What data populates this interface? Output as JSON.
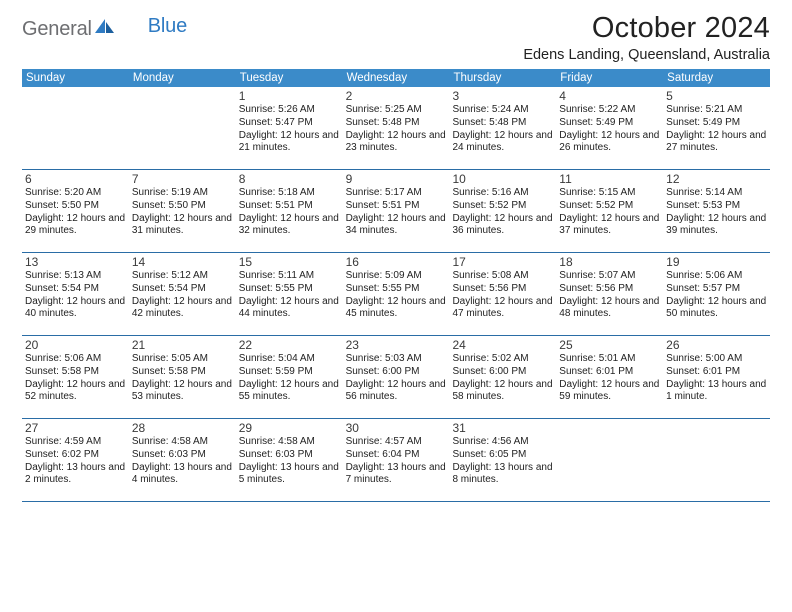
{
  "brand": {
    "part1": "General",
    "part2": "Blue"
  },
  "title": "October 2024",
  "location": "Edens Landing, Queensland, Australia",
  "styling": {
    "header_bg": "#3b8bc9",
    "header_text": "#ffffff",
    "rule_color": "#2a6da6",
    "logo_gray": "#6d6e71",
    "logo_blue": "#2f7bc3",
    "page_bg": "#ffffff",
    "title_fontsize": 29,
    "location_fontsize": 14.5,
    "dayhead_fontsize": 11.5,
    "daynum_fontsize": 12,
    "info_fontsize": 10
  },
  "day_headers": [
    "Sunday",
    "Monday",
    "Tuesday",
    "Wednesday",
    "Thursday",
    "Friday",
    "Saturday"
  ],
  "weeks": [
    [
      {
        "n": "",
        "sr": "",
        "ss": "",
        "dl": ""
      },
      {
        "n": "",
        "sr": "",
        "ss": "",
        "dl": ""
      },
      {
        "n": "1",
        "sr": "Sunrise: 5:26 AM",
        "ss": "Sunset: 5:47 PM",
        "dl": "Daylight: 12 hours and 21 minutes."
      },
      {
        "n": "2",
        "sr": "Sunrise: 5:25 AM",
        "ss": "Sunset: 5:48 PM",
        "dl": "Daylight: 12 hours and 23 minutes."
      },
      {
        "n": "3",
        "sr": "Sunrise: 5:24 AM",
        "ss": "Sunset: 5:48 PM",
        "dl": "Daylight: 12 hours and 24 minutes."
      },
      {
        "n": "4",
        "sr": "Sunrise: 5:22 AM",
        "ss": "Sunset: 5:49 PM",
        "dl": "Daylight: 12 hours and 26 minutes."
      },
      {
        "n": "5",
        "sr": "Sunrise: 5:21 AM",
        "ss": "Sunset: 5:49 PM",
        "dl": "Daylight: 12 hours and 27 minutes."
      }
    ],
    [
      {
        "n": "6",
        "sr": "Sunrise: 5:20 AM",
        "ss": "Sunset: 5:50 PM",
        "dl": "Daylight: 12 hours and 29 minutes."
      },
      {
        "n": "7",
        "sr": "Sunrise: 5:19 AM",
        "ss": "Sunset: 5:50 PM",
        "dl": "Daylight: 12 hours and 31 minutes."
      },
      {
        "n": "8",
        "sr": "Sunrise: 5:18 AM",
        "ss": "Sunset: 5:51 PM",
        "dl": "Daylight: 12 hours and 32 minutes."
      },
      {
        "n": "9",
        "sr": "Sunrise: 5:17 AM",
        "ss": "Sunset: 5:51 PM",
        "dl": "Daylight: 12 hours and 34 minutes."
      },
      {
        "n": "10",
        "sr": "Sunrise: 5:16 AM",
        "ss": "Sunset: 5:52 PM",
        "dl": "Daylight: 12 hours and 36 minutes."
      },
      {
        "n": "11",
        "sr": "Sunrise: 5:15 AM",
        "ss": "Sunset: 5:52 PM",
        "dl": "Daylight: 12 hours and 37 minutes."
      },
      {
        "n": "12",
        "sr": "Sunrise: 5:14 AM",
        "ss": "Sunset: 5:53 PM",
        "dl": "Daylight: 12 hours and 39 minutes."
      }
    ],
    [
      {
        "n": "13",
        "sr": "Sunrise: 5:13 AM",
        "ss": "Sunset: 5:54 PM",
        "dl": "Daylight: 12 hours and 40 minutes."
      },
      {
        "n": "14",
        "sr": "Sunrise: 5:12 AM",
        "ss": "Sunset: 5:54 PM",
        "dl": "Daylight: 12 hours and 42 minutes."
      },
      {
        "n": "15",
        "sr": "Sunrise: 5:11 AM",
        "ss": "Sunset: 5:55 PM",
        "dl": "Daylight: 12 hours and 44 minutes."
      },
      {
        "n": "16",
        "sr": "Sunrise: 5:09 AM",
        "ss": "Sunset: 5:55 PM",
        "dl": "Daylight: 12 hours and 45 minutes."
      },
      {
        "n": "17",
        "sr": "Sunrise: 5:08 AM",
        "ss": "Sunset: 5:56 PM",
        "dl": "Daylight: 12 hours and 47 minutes."
      },
      {
        "n": "18",
        "sr": "Sunrise: 5:07 AM",
        "ss": "Sunset: 5:56 PM",
        "dl": "Daylight: 12 hours and 48 minutes."
      },
      {
        "n": "19",
        "sr": "Sunrise: 5:06 AM",
        "ss": "Sunset: 5:57 PM",
        "dl": "Daylight: 12 hours and 50 minutes."
      }
    ],
    [
      {
        "n": "20",
        "sr": "Sunrise: 5:06 AM",
        "ss": "Sunset: 5:58 PM",
        "dl": "Daylight: 12 hours and 52 minutes."
      },
      {
        "n": "21",
        "sr": "Sunrise: 5:05 AM",
        "ss": "Sunset: 5:58 PM",
        "dl": "Daylight: 12 hours and 53 minutes."
      },
      {
        "n": "22",
        "sr": "Sunrise: 5:04 AM",
        "ss": "Sunset: 5:59 PM",
        "dl": "Daylight: 12 hours and 55 minutes."
      },
      {
        "n": "23",
        "sr": "Sunrise: 5:03 AM",
        "ss": "Sunset: 6:00 PM",
        "dl": "Daylight: 12 hours and 56 minutes."
      },
      {
        "n": "24",
        "sr": "Sunrise: 5:02 AM",
        "ss": "Sunset: 6:00 PM",
        "dl": "Daylight: 12 hours and 58 minutes."
      },
      {
        "n": "25",
        "sr": "Sunrise: 5:01 AM",
        "ss": "Sunset: 6:01 PM",
        "dl": "Daylight: 12 hours and 59 minutes."
      },
      {
        "n": "26",
        "sr": "Sunrise: 5:00 AM",
        "ss": "Sunset: 6:01 PM",
        "dl": "Daylight: 13 hours and 1 minute."
      }
    ],
    [
      {
        "n": "27",
        "sr": "Sunrise: 4:59 AM",
        "ss": "Sunset: 6:02 PM",
        "dl": "Daylight: 13 hours and 2 minutes."
      },
      {
        "n": "28",
        "sr": "Sunrise: 4:58 AM",
        "ss": "Sunset: 6:03 PM",
        "dl": "Daylight: 13 hours and 4 minutes."
      },
      {
        "n": "29",
        "sr": "Sunrise: 4:58 AM",
        "ss": "Sunset: 6:03 PM",
        "dl": "Daylight: 13 hours and 5 minutes."
      },
      {
        "n": "30",
        "sr": "Sunrise: 4:57 AM",
        "ss": "Sunset: 6:04 PM",
        "dl": "Daylight: 13 hours and 7 minutes."
      },
      {
        "n": "31",
        "sr": "Sunrise: 4:56 AM",
        "ss": "Sunset: 6:05 PM",
        "dl": "Daylight: 13 hours and 8 minutes."
      },
      {
        "n": "",
        "sr": "",
        "ss": "",
        "dl": ""
      },
      {
        "n": "",
        "sr": "",
        "ss": "",
        "dl": ""
      }
    ]
  ]
}
